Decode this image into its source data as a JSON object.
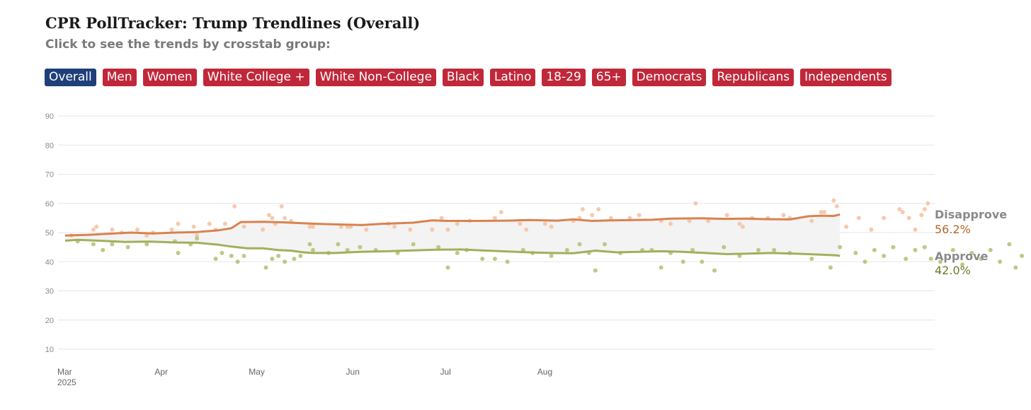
{
  "header": {
    "title": "CPR PollTracker: Trump Trendlines (Overall)",
    "subtitle": "Click to see the trends by crosstab group:"
  },
  "tabs": [
    {
      "label": "Overall",
      "active": true
    },
    {
      "label": "Men",
      "active": false
    },
    {
      "label": "Women",
      "active": false
    },
    {
      "label": "White College +",
      "active": false
    },
    {
      "label": "White Non-College",
      "active": false
    },
    {
      "label": "Black",
      "active": false
    },
    {
      "label": "Latino",
      "active": false
    },
    {
      "label": "18-29",
      "active": false
    },
    {
      "label": "65+",
      "active": false
    },
    {
      "label": "Democrats",
      "active": false
    },
    {
      "label": "Republicans",
      "active": false
    },
    {
      "label": "Independents",
      "active": false
    }
  ],
  "colors": {
    "tab_active": "#1f3f7a",
    "tab_inactive": "#c0283a",
    "disapprove_line": "#d9824f",
    "disapprove_dots": "#f6c0a0",
    "approve_line": "#a4ae5c",
    "approve_dots": "#b8c27a",
    "band_fill": "#f3f3f3",
    "disapprove_value_text": "#b5642c",
    "approve_value_text": "#6f7a2a"
  },
  "chart_data": {
    "type": "line",
    "grid": true,
    "ylim": [
      10,
      90
    ],
    "yticks": [
      10,
      20,
      30,
      40,
      50,
      60,
      70,
      80,
      90
    ],
    "x_domain": [
      "2025-03-01",
      "2025-08-31"
    ],
    "x_ticks": [
      {
        "date": "2025-03-01",
        "label": "Mar",
        "sublabel": "2025"
      },
      {
        "date": "2025-04-01",
        "label": "Apr"
      },
      {
        "date": "2025-05-01",
        "label": "May"
      },
      {
        "date": "2025-06-01",
        "label": "Jun"
      },
      {
        "date": "2025-07-01",
        "label": "Jul"
      },
      {
        "date": "2025-08-01",
        "label": "Aug"
      }
    ],
    "series": [
      {
        "name": "Disapprove",
        "last_label": "56.2%",
        "trend": [
          [
            "2025-03-01",
            49.0
          ],
          [
            "2025-03-08",
            49.2
          ],
          [
            "2025-03-15",
            49.6
          ],
          [
            "2025-03-22",
            50.0
          ],
          [
            "2025-03-29",
            49.7
          ],
          [
            "2025-04-05",
            50.0
          ],
          [
            "2025-04-12",
            50.2
          ],
          [
            "2025-04-19",
            50.8
          ],
          [
            "2025-04-23",
            51.5
          ],
          [
            "2025-04-26",
            53.6
          ],
          [
            "2025-05-03",
            53.7
          ],
          [
            "2025-05-10",
            53.5
          ],
          [
            "2025-05-20",
            53.0
          ],
          [
            "2025-05-27",
            52.8
          ],
          [
            "2025-06-04",
            52.6
          ],
          [
            "2025-06-10",
            53.0
          ],
          [
            "2025-06-20",
            53.4
          ],
          [
            "2025-06-26",
            54.2
          ],
          [
            "2025-07-01",
            54.0
          ],
          [
            "2025-07-10",
            54.0
          ],
          [
            "2025-07-20",
            54.1
          ],
          [
            "2025-07-27",
            54.3
          ],
          [
            "2025-08-05",
            54.1
          ],
          [
            "2025-08-10",
            54.5
          ],
          [
            "2025-08-16",
            54.0
          ],
          [
            "2025-08-22",
            54.2
          ],
          [
            "2025-08-29",
            54.3
          ],
          [
            "2025-09-04",
            54.4
          ],
          [
            "2025-09-10",
            54.8
          ],
          [
            "2025-09-20",
            54.9
          ],
          [
            "2025-09-27",
            54.7
          ],
          [
            "2025-10-04",
            54.8
          ],
          [
            "2025-10-10",
            54.6
          ],
          [
            "2025-10-18",
            54.5
          ],
          [
            "2025-10-24",
            55.6
          ],
          [
            "2025-10-28",
            55.8
          ],
          [
            "2025-11-01",
            55.7
          ],
          [
            "2025-11-03",
            56.2
          ]
        ],
        "polls": [
          [
            "2025-03-03",
            49
          ],
          [
            "2025-03-10",
            51
          ],
          [
            "2025-03-11",
            52
          ],
          [
            "2025-03-16",
            51
          ],
          [
            "2025-03-19",
            50
          ],
          [
            "2025-03-24",
            51
          ],
          [
            "2025-03-27",
            49
          ],
          [
            "2025-03-29",
            50
          ],
          [
            "2025-04-04",
            51
          ],
          [
            "2025-04-06",
            53
          ],
          [
            "2025-04-11",
            52
          ],
          [
            "2025-04-12",
            49
          ],
          [
            "2025-04-16",
            53
          ],
          [
            "2025-04-18",
            51
          ],
          [
            "2025-04-21",
            53
          ],
          [
            "2025-04-24",
            59
          ],
          [
            "2025-04-27",
            52
          ],
          [
            "2025-05-03",
            51
          ],
          [
            "2025-05-05",
            56
          ],
          [
            "2025-05-06",
            55
          ],
          [
            "2025-05-07",
            53
          ],
          [
            "2025-05-09",
            59
          ],
          [
            "2025-05-10",
            55
          ],
          [
            "2025-05-12",
            54
          ],
          [
            "2025-05-18",
            52
          ],
          [
            "2025-05-19",
            52
          ],
          [
            "2025-05-28",
            52
          ],
          [
            "2025-05-30",
            52
          ],
          [
            "2025-05-31",
            52
          ],
          [
            "2025-06-05",
            51
          ],
          [
            "2025-06-12",
            53
          ],
          [
            "2025-06-14",
            52
          ],
          [
            "2025-06-19",
            51
          ],
          [
            "2025-06-26",
            51
          ],
          [
            "2025-06-29",
            55
          ],
          [
            "2025-07-01",
            51
          ],
          [
            "2025-07-04",
            53
          ],
          [
            "2025-07-08",
            54
          ],
          [
            "2025-07-16",
            55
          ],
          [
            "2025-07-18",
            57
          ],
          [
            "2025-07-24",
            53
          ],
          [
            "2025-07-26",
            51
          ],
          [
            "2025-08-01",
            53
          ],
          [
            "2025-08-03",
            52
          ],
          [
            "2025-08-10",
            54
          ],
          [
            "2025-08-12",
            55
          ],
          [
            "2025-08-13",
            58
          ],
          [
            "2025-08-16",
            56
          ],
          [
            "2025-08-18",
            58
          ],
          [
            "2025-08-22",
            55
          ],
          [
            "2025-08-28",
            55
          ],
          [
            "2025-08-31",
            56
          ],
          [
            "2025-09-07",
            54
          ],
          [
            "2025-09-10",
            53
          ],
          [
            "2025-09-16",
            54
          ],
          [
            "2025-09-18",
            60
          ],
          [
            "2025-09-22",
            54
          ],
          [
            "2025-09-28",
            56
          ],
          [
            "2025-10-02",
            53
          ],
          [
            "2025-10-03",
            52
          ],
          [
            "2025-10-06",
            55
          ],
          [
            "2025-10-11",
            55
          ],
          [
            "2025-10-16",
            56
          ],
          [
            "2025-10-18",
            55
          ],
          [
            "2025-10-25",
            54
          ],
          [
            "2025-10-28",
            57
          ],
          [
            "2025-10-29",
            57
          ],
          [
            "2025-11-01",
            61
          ],
          [
            "2025-11-02",
            59
          ],
          [
            "2025-11-05",
            52
          ],
          [
            "2025-11-09",
            55
          ],
          [
            "2025-11-13",
            51
          ],
          [
            "2025-11-17",
            55
          ],
          [
            "2025-11-22",
            58
          ],
          [
            "2025-11-23",
            57
          ],
          [
            "2025-11-25",
            55
          ],
          [
            "2025-11-27",
            51
          ],
          [
            "2025-11-29",
            56
          ],
          [
            "2025-11-30",
            58
          ],
          [
            "2025-12-01",
            60
          ]
        ]
      },
      {
        "name": "Approve",
        "last_label": "42.0%",
        "trend": [
          [
            "2025-03-01",
            47.2
          ],
          [
            "2025-03-05",
            47.5
          ],
          [
            "2025-03-12",
            47.2
          ],
          [
            "2025-03-20",
            46.8
          ],
          [
            "2025-03-28",
            46.9
          ],
          [
            "2025-04-05",
            46.6
          ],
          [
            "2025-04-12",
            46.5
          ],
          [
            "2025-04-19",
            45.8
          ],
          [
            "2025-04-23",
            45.2
          ],
          [
            "2025-04-28",
            44.6
          ],
          [
            "2025-05-03",
            44.6
          ],
          [
            "2025-05-08",
            44.0
          ],
          [
            "2025-05-12",
            43.8
          ],
          [
            "2025-05-16",
            43.2
          ],
          [
            "2025-05-19",
            43.0
          ],
          [
            "2025-05-26",
            43.0
          ],
          [
            "2025-06-03",
            43.4
          ],
          [
            "2025-06-12",
            43.6
          ],
          [
            "2025-06-20",
            43.9
          ],
          [
            "2025-06-27",
            44.1
          ],
          [
            "2025-07-05",
            44.2
          ],
          [
            "2025-07-12",
            43.9
          ],
          [
            "2025-07-20",
            43.5
          ],
          [
            "2025-07-27",
            43.2
          ],
          [
            "2025-08-03",
            43.0
          ],
          [
            "2025-08-10",
            42.9
          ],
          [
            "2025-08-17",
            43.8
          ],
          [
            "2025-08-24",
            43.2
          ],
          [
            "2025-08-31",
            43.4
          ],
          [
            "2025-09-07",
            43.6
          ],
          [
            "2025-09-14",
            43.4
          ],
          [
            "2025-09-21",
            43.0
          ],
          [
            "2025-09-28",
            42.6
          ],
          [
            "2025-10-05",
            42.8
          ],
          [
            "2025-10-12",
            43.0
          ],
          [
            "2025-10-19",
            42.8
          ],
          [
            "2025-10-26",
            42.5
          ],
          [
            "2025-11-02",
            42.2
          ],
          [
            "2025-11-03",
            42.0
          ]
        ],
        "polls": [
          [
            "2025-03-05",
            47
          ],
          [
            "2025-03-10",
            46
          ],
          [
            "2025-03-13",
            44
          ],
          [
            "2025-03-16",
            46
          ],
          [
            "2025-03-21",
            45
          ],
          [
            "2025-03-27",
            46
          ],
          [
            "2025-04-05",
            47
          ],
          [
            "2025-04-06",
            43
          ],
          [
            "2025-04-10",
            46
          ],
          [
            "2025-04-12",
            48
          ],
          [
            "2025-04-18",
            41
          ],
          [
            "2025-04-20",
            43
          ],
          [
            "2025-04-23",
            42
          ],
          [
            "2025-04-25",
            40
          ],
          [
            "2025-04-27",
            42
          ],
          [
            "2025-05-04",
            38
          ],
          [
            "2025-05-06",
            41
          ],
          [
            "2025-05-08",
            42
          ],
          [
            "2025-05-10",
            40
          ],
          [
            "2025-05-13",
            41
          ],
          [
            "2025-05-15",
            42
          ],
          [
            "2025-05-18",
            46
          ],
          [
            "2025-05-19",
            44
          ],
          [
            "2025-05-24",
            43
          ],
          [
            "2025-05-27",
            46
          ],
          [
            "2025-05-30",
            44
          ],
          [
            "2025-06-03",
            45
          ],
          [
            "2025-06-08",
            44
          ],
          [
            "2025-06-15",
            43
          ],
          [
            "2025-06-20",
            46
          ],
          [
            "2025-06-28",
            45
          ],
          [
            "2025-07-01",
            38
          ],
          [
            "2025-07-04",
            43
          ],
          [
            "2025-07-07",
            44
          ],
          [
            "2025-07-12",
            41
          ],
          [
            "2025-07-16",
            41
          ],
          [
            "2025-07-20",
            40
          ],
          [
            "2025-07-25",
            44
          ],
          [
            "2025-07-28",
            43
          ],
          [
            "2025-08-03",
            42
          ],
          [
            "2025-08-08",
            44
          ],
          [
            "2025-08-12",
            46
          ],
          [
            "2025-08-15",
            43
          ],
          [
            "2025-08-17",
            37
          ],
          [
            "2025-08-20",
            46
          ],
          [
            "2025-08-25",
            43
          ],
          [
            "2025-09-01",
            44
          ],
          [
            "2025-09-04",
            44
          ],
          [
            "2025-09-07",
            38
          ],
          [
            "2025-09-10",
            43
          ],
          [
            "2025-09-14",
            40
          ],
          [
            "2025-09-17",
            44
          ],
          [
            "2025-09-20",
            40
          ],
          [
            "2025-09-24",
            37
          ],
          [
            "2025-09-27",
            45
          ],
          [
            "2025-10-02",
            42
          ],
          [
            "2025-10-08",
            44
          ],
          [
            "2025-10-13",
            44
          ],
          [
            "2025-10-18",
            43
          ],
          [
            "2025-10-25",
            41
          ],
          [
            "2025-10-31",
            38
          ],
          [
            "2025-11-03",
            45
          ],
          [
            "2025-11-08",
            43
          ],
          [
            "2025-11-11",
            40
          ],
          [
            "2025-11-14",
            44
          ],
          [
            "2025-11-17",
            42
          ],
          [
            "2025-11-20",
            45
          ],
          [
            "2025-11-24",
            41
          ],
          [
            "2025-11-27",
            44
          ],
          [
            "2025-11-30",
            45
          ],
          [
            "2025-12-02",
            41
          ],
          [
            "2025-12-05",
            40
          ],
          [
            "2025-12-09",
            44
          ],
          [
            "2025-12-12",
            39
          ],
          [
            "2025-12-15",
            43
          ],
          [
            "2025-12-18",
            41
          ],
          [
            "2025-12-21",
            44
          ],
          [
            "2025-12-24",
            40
          ],
          [
            "2025-12-27",
            46
          ],
          [
            "2025-12-29",
            38
          ],
          [
            "2025-12-31",
            42
          ]
        ]
      }
    ]
  }
}
